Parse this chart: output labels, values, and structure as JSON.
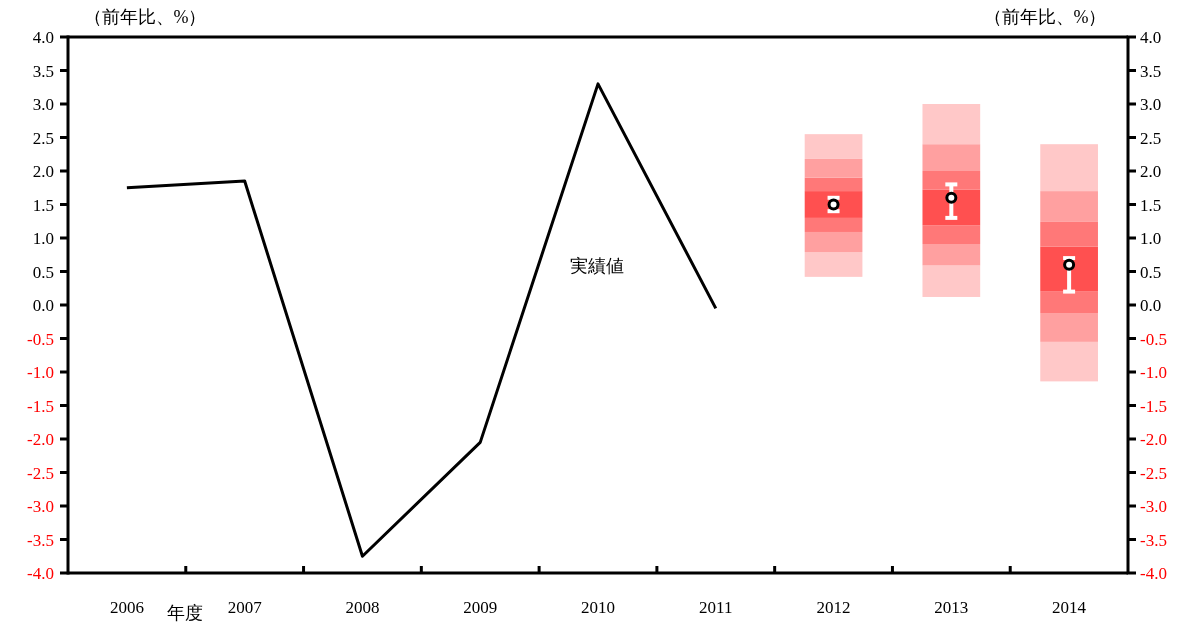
{
  "chart_data": {
    "type": "line",
    "xlabel": "年度",
    "ylabel": "（前年比、%）",
    "y2label": "（前年比、%）",
    "categories": [
      "2006",
      "2007",
      "2008",
      "2009",
      "2010",
      "2011",
      "2012",
      "2013",
      "2014"
    ],
    "series": [
      {
        "name": "実績値",
        "color": "#000000",
        "values": [
          1.75,
          1.85,
          -3.75,
          -2.05,
          3.3,
          -0.05,
          null,
          null,
          null
        ]
      },
      {
        "type": "bar",
        "color": "#ffc8c8",
        "base": [
          null,
          null,
          null,
          null,
          null,
          null,
          0.42,
          0.12,
          -1.14
        ],
        "values": [
          null,
          null,
          null,
          null,
          null,
          null,
          0.37,
          0.47,
          0.59
        ]
      },
      {
        "type": "bar",
        "color": "#ffa0a0",
        "base": [
          null,
          null,
          null,
          null,
          null,
          null,
          0.79,
          0.59,
          -0.55
        ],
        "values": [
          null,
          null,
          null,
          null,
          null,
          null,
          0.3,
          0.32,
          0.43
        ]
      },
      {
        "type": "bar",
        "color": "#ff7878",
        "base": [
          null,
          null,
          null,
          null,
          null,
          null,
          1.09,
          0.91,
          -0.12
        ],
        "values": [
          null,
          null,
          null,
          null,
          null,
          null,
          0.21,
          0.28,
          0.32
        ]
      },
      {
        "type": "bar",
        "color": "#ff5050",
        "base": [
          null,
          null,
          null,
          null,
          null,
          null,
          1.3,
          1.19,
          0.2
        ],
        "values": [
          null,
          null,
          null,
          null,
          null,
          null,
          0.4,
          0.53,
          0.67
        ]
      },
      {
        "type": "bar",
        "color": "#ff7878",
        "base": [
          null,
          null,
          null,
          null,
          null,
          null,
          1.7,
          1.72,
          0.87
        ],
        "values": [
          null,
          null,
          null,
          null,
          null,
          null,
          0.2,
          0.28,
          0.37
        ]
      },
      {
        "type": "bar",
        "color": "#ffa0a0",
        "base": [
          null,
          null,
          null,
          null,
          null,
          null,
          1.9,
          2.0,
          1.24
        ],
        "values": [
          null,
          null,
          null,
          null,
          null,
          null,
          0.28,
          0.4,
          0.46
        ]
      },
      {
        "type": "bar",
        "color": "#ffc8c8",
        "base": [
          null,
          null,
          null,
          null,
          null,
          null,
          2.18,
          2.4,
          1.7
        ],
        "values": [
          null,
          null,
          null,
          null,
          null,
          null,
          0.37,
          0.6,
          0.7
        ]
      },
      {
        "type": "scatter",
        "color": "#000000",
        "marker": "circle",
        "values": [
          null,
          null,
          null,
          null,
          null,
          null,
          1.5,
          1.6,
          0.6
        ],
        "errors": [
          null,
          null,
          null,
          null,
          null,
          null,
          [
            1.4,
            1.6
          ],
          [
            1.3,
            1.8
          ],
          [
            0.2,
            0.7
          ]
        ]
      }
    ],
    "ylim": [
      -4,
      4
    ],
    "yticks": [
      {
        "value": -4,
        "label": "-4.0"
      },
      {
        "value": -3.5,
        "label": "-3.5"
      },
      {
        "value": -3,
        "label": "-3.0"
      },
      {
        "value": -2.5,
        "label": "-2.5"
      },
      {
        "value": -2,
        "label": "-2.0"
      },
      {
        "value": -1.5,
        "label": "-1.5"
      },
      {
        "value": -1,
        "label": "-1.0"
      },
      {
        "value": -0.5,
        "label": "-0.5"
      },
      {
        "value": 0,
        "label": "0.0"
      },
      {
        "value": 0.5,
        "label": "0.5"
      },
      {
        "value": 1,
        "label": "1.0"
      },
      {
        "value": 1.5,
        "label": "1.5"
      },
      {
        "value": 2,
        "label": "2.0"
      },
      {
        "value": 2.5,
        "label": "2.5"
      },
      {
        "value": 3,
        "label": "3.0"
      },
      {
        "value": 3.5,
        "label": "3.5"
      },
      {
        "value": 4,
        "label": "4.0"
      }
    ],
    "y2lim": [
      -4,
      4
    ],
    "y2ticks": [
      {
        "value": -4,
        "label": "-4.0"
      },
      {
        "value": -3.5,
        "label": "-3.5"
      },
      {
        "value": -3,
        "label": "-3.0"
      },
      {
        "value": -2.5,
        "label": "-2.5"
      },
      {
        "value": -2,
        "label": "-2.0"
      },
      {
        "value": -1.5,
        "label": "-1.5"
      },
      {
        "value": -1,
        "label": "-1.0"
      },
      {
        "value": -0.5,
        "label": "-0.5"
      },
      {
        "value": 0,
        "label": "0.0"
      },
      {
        "value": 0.5,
        "label": "0.5"
      },
      {
        "value": 1,
        "label": "1.0"
      },
      {
        "value": 1.5,
        "label": "1.5"
      },
      {
        "value": 2,
        "label": "2.0"
      },
      {
        "value": 2.5,
        "label": "2.5"
      },
      {
        "value": 3,
        "label": "3.0"
      },
      {
        "value": 3.5,
        "label": "3.5"
      },
      {
        "value": 4,
        "label": "4.0"
      }
    ]
  }
}
